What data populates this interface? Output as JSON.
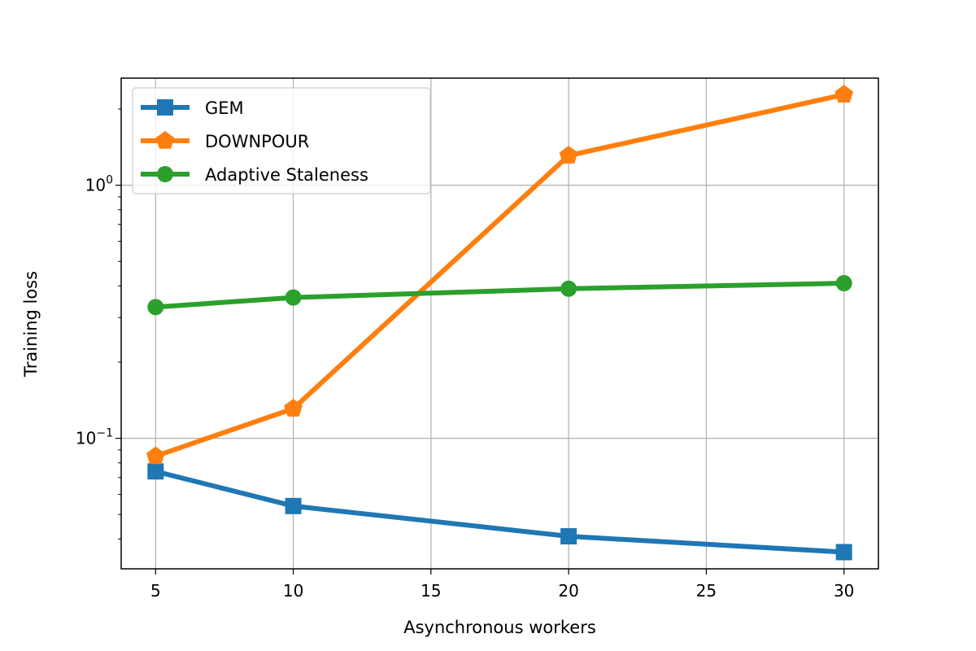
{
  "chart_data": {
    "type": "line",
    "title": "",
    "xlabel": "Asynchronous workers",
    "ylabel": "Training loss",
    "x_scale": "linear",
    "y_scale": "log",
    "xlim": [
      3.75,
      31.25
    ],
    "ylim": [
      0.0305,
      2.65
    ],
    "x_ticks": [
      5,
      10,
      15,
      20,
      25,
      30
    ],
    "x_tick_labels": [
      "5",
      "10",
      "15",
      "20",
      "25",
      "30"
    ],
    "y_major_ticks": [
      0.1,
      1
    ],
    "y_tick_labels": [
      {
        "base": "10",
        "exp": "−1"
      },
      {
        "base": "10",
        "exp": "0"
      }
    ],
    "grid": true,
    "legend_position": "upper-left",
    "x": [
      5,
      10,
      20,
      30
    ],
    "series": [
      {
        "name": "GEM",
        "color": "#1f77b4",
        "marker": "square",
        "values": [
          0.074,
          0.054,
          0.041,
          0.0355
        ]
      },
      {
        "name": "DOWNPOUR",
        "color": "#ff7f0e",
        "marker": "pentagon",
        "values": [
          0.085,
          0.131,
          1.31,
          2.28
        ]
      },
      {
        "name": "Adaptive Staleness",
        "color": "#2ca02c",
        "marker": "circle",
        "values": [
          0.33,
          0.36,
          0.39,
          0.41
        ]
      }
    ]
  }
}
